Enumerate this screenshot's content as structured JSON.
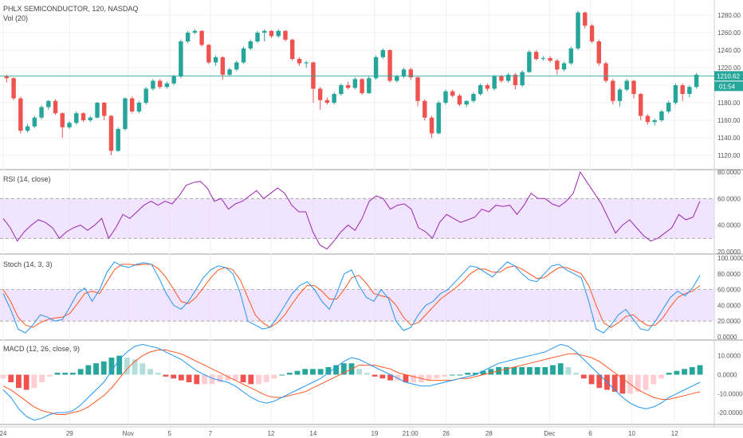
{
  "chart_data": {
    "type": "candlestick",
    "main": {
      "legend": [
        "PHLX SEMICONDUCTOR, 120, NASDAQ",
        "Vol (20)"
      ],
      "y_ticks": [
        "1280.00",
        "1260.00",
        "1240.00",
        "1220.00",
        "1200.00",
        "1180.00",
        "1160.00",
        "1140.00",
        "1120.00"
      ],
      "y_range": [
        1110,
        1290
      ],
      "last_price": 1210.62,
      "last_price_label": "1210.62",
      "countdown_label": "01:54",
      "candles": [
        [
          1210,
          1208,
          1212,
          1203
        ],
        [
          1208,
          1185,
          1209,
          1183
        ],
        [
          1185,
          1148,
          1187,
          1145
        ],
        [
          1148,
          1153,
          1156,
          1146
        ],
        [
          1153,
          1163,
          1165,
          1151
        ],
        [
          1163,
          1175,
          1177,
          1161
        ],
        [
          1175,
          1182,
          1183,
          1172
        ],
        [
          1182,
          1168,
          1184,
          1166
        ],
        [
          1168,
          1152,
          1169,
          1140
        ],
        [
          1152,
          1157,
          1159,
          1150
        ],
        [
          1157,
          1168,
          1170,
          1155
        ],
        [
          1168,
          1160,
          1169,
          1158
        ],
        [
          1160,
          1163,
          1165,
          1158
        ],
        [
          1163,
          1180,
          1181,
          1162
        ],
        [
          1180,
          1165,
          1181,
          1160
        ],
        [
          1165,
          1125,
          1166,
          1120
        ],
        [
          1125,
          1150,
          1152,
          1124
        ],
        [
          1150,
          1185,
          1186,
          1148
        ],
        [
          1185,
          1170,
          1187,
          1168
        ],
        [
          1170,
          1180,
          1182,
          1168
        ],
        [
          1180,
          1196,
          1198,
          1178
        ],
        [
          1196,
          1205,
          1207,
          1194
        ],
        [
          1205,
          1198,
          1207,
          1196
        ],
        [
          1198,
          1202,
          1204,
          1196
        ],
        [
          1202,
          1210,
          1212,
          1200
        ],
        [
          1210,
          1250,
          1252,
          1208
        ],
        [
          1250,
          1260,
          1262,
          1248
        ],
        [
          1260,
          1262,
          1264,
          1258
        ],
        [
          1262,
          1246,
          1263,
          1244
        ],
        [
          1246,
          1226,
          1247,
          1224
        ],
        [
          1226,
          1232,
          1234,
          1222
        ],
        [
          1232,
          1212,
          1233,
          1206
        ],
        [
          1212,
          1218,
          1220,
          1210
        ],
        [
          1218,
          1226,
          1228,
          1216
        ],
        [
          1226,
          1242,
          1244,
          1224
        ],
        [
          1242,
          1250,
          1252,
          1240
        ],
        [
          1250,
          1260,
          1262,
          1248
        ],
        [
          1260,
          1262,
          1264,
          1250
        ],
        [
          1262,
          1256,
          1263,
          1254
        ],
        [
          1256,
          1262,
          1264,
          1254
        ],
        [
          1262,
          1252,
          1263,
          1250
        ],
        [
          1252,
          1230,
          1253,
          1228
        ],
        [
          1230,
          1225,
          1232,
          1222
        ],
        [
          1225,
          1226,
          1228,
          1220
        ],
        [
          1226,
          1196,
          1227,
          1180
        ],
        [
          1196,
          1183,
          1198,
          1172
        ],
        [
          1183,
          1180,
          1186,
          1178
        ],
        [
          1180,
          1190,
          1192,
          1178
        ],
        [
          1190,
          1200,
          1202,
          1188
        ],
        [
          1200,
          1197,
          1204,
          1195
        ],
        [
          1197,
          1207,
          1209,
          1195
        ],
        [
          1207,
          1191,
          1208,
          1189
        ],
        [
          1191,
          1208,
          1210,
          1190
        ],
        [
          1208,
          1232,
          1234,
          1206
        ],
        [
          1232,
          1240,
          1242,
          1230
        ],
        [
          1240,
          1205,
          1241,
          1203
        ],
        [
          1205,
          1210,
          1212,
          1203
        ],
        [
          1210,
          1218,
          1220,
          1208
        ],
        [
          1218,
          1209,
          1220,
          1206
        ],
        [
          1209,
          1182,
          1210,
          1176
        ],
        [
          1182,
          1163,
          1184,
          1160
        ],
        [
          1163,
          1145,
          1165,
          1140
        ],
        [
          1145,
          1180,
          1182,
          1144
        ],
        [
          1180,
          1193,
          1195,
          1178
        ],
        [
          1193,
          1188,
          1195,
          1186
        ],
        [
          1188,
          1178,
          1190,
          1176
        ],
        [
          1178,
          1182,
          1183,
          1175
        ],
        [
          1182,
          1190,
          1192,
          1180
        ],
        [
          1190,
          1200,
          1202,
          1188
        ],
        [
          1200,
          1196,
          1202,
          1193
        ],
        [
          1196,
          1210,
          1212,
          1194
        ],
        [
          1210,
          1205,
          1212,
          1203
        ],
        [
          1205,
          1212,
          1214,
          1203
        ],
        [
          1212,
          1200,
          1214,
          1195
        ],
        [
          1200,
          1215,
          1217,
          1198
        ],
        [
          1215,
          1238,
          1240,
          1214
        ],
        [
          1238,
          1230,
          1240,
          1228
        ],
        [
          1230,
          1231,
          1233,
          1228
        ],
        [
          1231,
          1228,
          1233,
          1226
        ],
        [
          1228,
          1218,
          1230,
          1212
        ],
        [
          1218,
          1225,
          1227,
          1216
        ],
        [
          1225,
          1242,
          1244,
          1223
        ],
        [
          1242,
          1283,
          1285,
          1240
        ],
        [
          1283,
          1268,
          1284,
          1265
        ],
        [
          1268,
          1250,
          1270,
          1248
        ],
        [
          1250,
          1225,
          1252,
          1222
        ],
        [
          1225,
          1205,
          1227,
          1203
        ],
        [
          1205,
          1182,
          1207,
          1178
        ],
        [
          1182,
          1195,
          1197,
          1176
        ],
        [
          1195,
          1205,
          1207,
          1193
        ],
        [
          1205,
          1190,
          1206,
          1185
        ],
        [
          1190,
          1165,
          1191,
          1160
        ],
        [
          1165,
          1158,
          1167,
          1155
        ],
        [
          1158,
          1160,
          1162,
          1154
        ],
        [
          1160,
          1170,
          1172,
          1158
        ],
        [
          1170,
          1180,
          1182,
          1168
        ],
        [
          1180,
          1200,
          1202,
          1178
        ],
        [
          1200,
          1190,
          1202,
          1182
        ],
        [
          1190,
          1198,
          1200,
          1186
        ],
        [
          1198,
          1212,
          1214,
          1196
        ]
      ]
    },
    "rsi": {
      "legend": "RSI (14, close)",
      "y_ticks": [
        "80.0000",
        "60.0000",
        "40.0000",
        "20.0000"
      ],
      "y_range": [
        20,
        80
      ],
      "band": [
        30,
        60
      ],
      "values": [
        45,
        38,
        28,
        35,
        40,
        44,
        42,
        38,
        30,
        35,
        38,
        40,
        36,
        40,
        45,
        30,
        38,
        48,
        45,
        50,
        55,
        58,
        55,
        58,
        56,
        62,
        70,
        72,
        73,
        68,
        58,
        60,
        52,
        56,
        58,
        62,
        66,
        60,
        64,
        68,
        64,
        55,
        50,
        50,
        35,
        25,
        22,
        28,
        35,
        40,
        36,
        45,
        58,
        62,
        60,
        52,
        55,
        56,
        52,
        38,
        35,
        30,
        42,
        48,
        45,
        42,
        44,
        46,
        52,
        50,
        55,
        54,
        55,
        48,
        55,
        64,
        60,
        60,
        56,
        54,
        58,
        64,
        80,
        72,
        64,
        56,
        45,
        34,
        40,
        44,
        38,
        32,
        28,
        30,
        34,
        38,
        48,
        44,
        46,
        58
      ]
    },
    "stoch": {
      "legend": "Stoch (14, 3, 3)",
      "y_ticks": [
        "100.0000",
        "80.0000",
        "60.0000",
        "40.0000",
        "20.0000",
        "0.0000"
      ],
      "y_range": [
        0,
        100
      ],
      "band": [
        20,
        60
      ],
      "k": [
        55,
        35,
        10,
        5,
        15,
        28,
        25,
        20,
        22,
        38,
        55,
        62,
        45,
        60,
        82,
        95,
        90,
        88,
        92,
        94,
        92,
        75,
        55,
        40,
        35,
        45,
        60,
        75,
        85,
        90,
        88,
        80,
        55,
        20,
        15,
        10,
        12,
        25,
        40,
        55,
        65,
        70,
        60,
        45,
        35,
        55,
        80,
        85,
        65,
        50,
        45,
        60,
        48,
        20,
        8,
        12,
        28,
        40,
        45,
        55,
        60,
        70,
        80,
        90,
        88,
        82,
        76,
        86,
        95,
        90,
        80,
        72,
        70,
        80,
        90,
        92,
        85,
        80,
        75,
        45,
        10,
        5,
        15,
        28,
        35,
        22,
        10,
        8,
        20,
        35,
        50,
        58,
        52,
        62,
        78
      ],
      "d": [
        60,
        45,
        25,
        15,
        12,
        18,
        22,
        24,
        25,
        30,
        42,
        55,
        58,
        55,
        70,
        85,
        92,
        92,
        91,
        92,
        92,
        86,
        75,
        60,
        45,
        42,
        50,
        62,
        75,
        85,
        88,
        85,
        72,
        50,
        28,
        18,
        12,
        18,
        28,
        42,
        55,
        65,
        65,
        58,
        48,
        48,
        60,
        75,
        78,
        68,
        55,
        52,
        50,
        40,
        25,
        15,
        18,
        28,
        38,
        48,
        55,
        62,
        70,
        80,
        86,
        86,
        82,
        82,
        88,
        90,
        86,
        80,
        74,
        75,
        82,
        88,
        88,
        84,
        80,
        65,
        40,
        18,
        12,
        18,
        26,
        28,
        20,
        14,
        15,
        24,
        38,
        50,
        55,
        58,
        65
      ],
      "x_index_scale": 100
    },
    "macd": {
      "legend": "MACD (12, 26, close, 9)",
      "y_ticks": [
        "10.0000",
        "0.0000",
        "-10.0000",
        "-20.0000"
      ],
      "y_range": [
        -25,
        17
      ],
      "macd": [
        -8,
        -12,
        -18,
        -22,
        -24,
        -23,
        -21,
        -20,
        -20,
        -19,
        -16,
        -12,
        -8,
        -4,
        2,
        8,
        12,
        15,
        16,
        15,
        14,
        12,
        10,
        8,
        5,
        2,
        0,
        -2,
        -3,
        -4,
        -6,
        -9,
        -12,
        -14,
        -15,
        -14,
        -12,
        -10,
        -8,
        -6,
        -4,
        -2,
        1,
        4,
        7,
        9,
        8,
        6,
        4,
        2,
        0,
        -2,
        -4,
        -5,
        -6,
        -6,
        -5,
        -4,
        -3,
        -2,
        -1,
        0,
        2,
        4,
        6,
        7,
        8,
        9,
        10,
        11,
        12,
        14,
        16,
        15,
        12,
        8,
        4,
        0,
        -4,
        -8,
        -12,
        -15,
        -17,
        -18,
        -17,
        -15,
        -12,
        -10,
        -8,
        -6,
        -4
      ],
      "signal": [
        -6,
        -8,
        -11,
        -14,
        -17,
        -19,
        -20,
        -21,
        -21,
        -20,
        -19,
        -17,
        -14,
        -11,
        -7,
        -2,
        3,
        7,
        10,
        12,
        13,
        13,
        12,
        11,
        9,
        7,
        5,
        3,
        1,
        -1,
        -3,
        -5,
        -7,
        -9,
        -11,
        -12,
        -12,
        -11,
        -10,
        -9,
        -7,
        -5,
        -3,
        -1,
        1,
        3,
        5,
        5,
        5,
        4,
        3,
        1,
        0,
        -1,
        -2,
        -3,
        -3,
        -3,
        -3,
        -2,
        -2,
        -1,
        0,
        1,
        2,
        3,
        4,
        5,
        6,
        7,
        8,
        9,
        10,
        11,
        11,
        10,
        9,
        7,
        4,
        1,
        -2,
        -5,
        -8,
        -10,
        -12,
        -13,
        -13,
        -12,
        -11,
        -10,
        -9
      ],
      "x_index_scale": 100
    },
    "x_ticks": [
      {
        "label": "24",
        "pos": 0.0
      },
      {
        "label": "29",
        "pos": 0.093
      },
      {
        "label": "Nov",
        "pos": 0.175
      },
      {
        "label": "5",
        "pos": 0.233
      },
      {
        "label": "7",
        "pos": 0.29
      },
      {
        "label": "12",
        "pos": 0.375
      },
      {
        "label": "14",
        "pos": 0.434
      },
      {
        "label": "19",
        "pos": 0.52
      },
      {
        "label": "21:00",
        "pos": 0.57
      },
      {
        "label": "26",
        "pos": 0.62
      },
      {
        "label": "28",
        "pos": 0.68
      },
      {
        "label": "Dec",
        "pos": 0.765
      },
      {
        "label": "6",
        "pos": 0.822
      },
      {
        "label": "10",
        "pos": 0.88
      },
      {
        "label": "12",
        "pos": 0.94
      }
    ],
    "colors": {
      "up": "#26a69a",
      "down": "#ef5350",
      "price_line": "#26a69a",
      "rsi": "#9c27b0",
      "band": "#e9d5ff",
      "stoch_k": "#2196f3",
      "stoch_d": "#ff5722",
      "macd": "#2196f3",
      "signal": "#ff5722",
      "hist_up_strong": "#26a69a",
      "hist_up_weak": "#b2dfdb",
      "hist_down_strong": "#ef5350",
      "hist_down_weak": "#ffcdd2"
    }
  }
}
